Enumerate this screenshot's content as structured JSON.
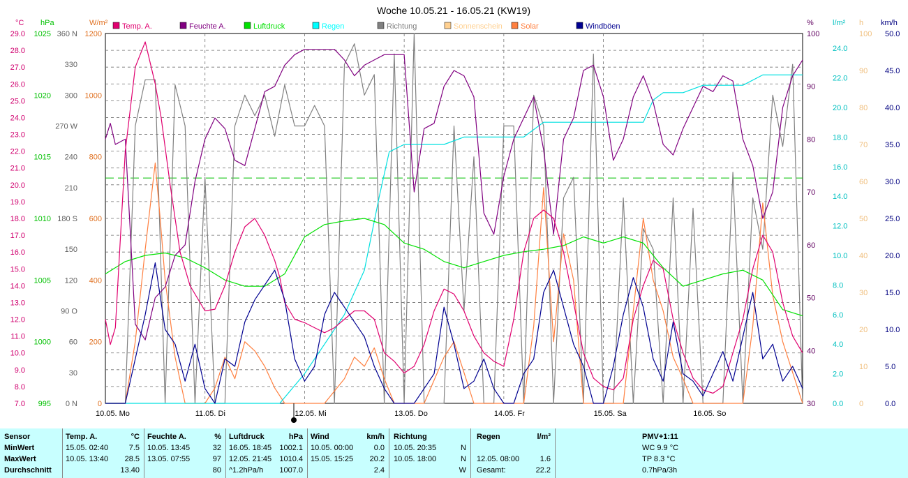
{
  "chart_data": {
    "type": "line",
    "title": "Woche 10.05.21 - 16.05.21 (KW19)",
    "x_labels": [
      "10.05. Mo",
      "11.05. Di",
      "12.05. Mi",
      "13.05. Do",
      "14.05. Fr",
      "15.05. Sa",
      "16.05. So"
    ],
    "axes": {
      "temp": {
        "unit": "°C",
        "min": 7,
        "max": 29,
        "ticks": [
          "7.0",
          "8.0",
          "9.0",
          "10.0",
          "11.0",
          "12.0",
          "13.0",
          "14.0",
          "15.0",
          "16.0",
          "17.0",
          "18.0",
          "19.0",
          "20.0",
          "21.0",
          "22.0",
          "23.0",
          "24.0",
          "25.0",
          "26.0",
          "27.0",
          "28.0",
          "29.0"
        ],
        "color": "#d0006f"
      },
      "pressure": {
        "unit": "hPa",
        "min": 995,
        "max": 1025,
        "ticks": [
          "995",
          "1000",
          "1005",
          "1010",
          "1015",
          "1020",
          "1025"
        ],
        "color": "#00c000"
      },
      "direction": {
        "ticks": [
          "0 N",
          "30",
          "60",
          "90 O",
          "120",
          "150",
          "180 S",
          "210",
          "240",
          "270 W",
          "300",
          "330",
          "360 N"
        ],
        "color": "#606060"
      },
      "solar": {
        "unit": "W/m²",
        "min": 0,
        "max": 1200,
        "ticks": [
          "0",
          "200",
          "400",
          "600",
          "800",
          "1000",
          "1200"
        ],
        "color": "#e07020"
      },
      "humidity": {
        "unit": "%",
        "min": 30,
        "max": 100,
        "ticks": [
          "30",
          "40",
          "50",
          "60",
          "70",
          "80",
          "90",
          "100"
        ],
        "color": "#600060"
      },
      "rain": {
        "unit": "l/m²",
        "min": 0,
        "max": 25,
        "ticks": [
          "0.0",
          "2.0",
          "4.0",
          "6.0",
          "8.0",
          "10.0",
          "12.0",
          "14.0",
          "16.0",
          "18.0",
          "20.0",
          "22.0",
          "24.0"
        ],
        "color": "#00c0c0"
      },
      "sunshine": {
        "unit": "h",
        "min": 0,
        "max": 100,
        "ticks": [
          "0",
          "10",
          "20",
          "30",
          "40",
          "50",
          "60",
          "70",
          "80",
          "90",
          "100"
        ],
        "color": "#f0c080"
      },
      "wind": {
        "unit": "km/h",
        "min": 0,
        "max": 50,
        "ticks": [
          "0.0",
          "5.0",
          "10.0",
          "15.0",
          "20.0",
          "25.0",
          "30.0",
          "35.0",
          "40.0",
          "45.0",
          "50.0"
        ],
        "color": "#000080"
      }
    },
    "reference_line": {
      "axis": "temp",
      "value": 20.4,
      "color": "#00c000"
    },
    "legend": [
      {
        "name": "Temp. A.",
        "color": "#e0006f"
      },
      {
        "name": "Feuchte A.",
        "color": "#800080"
      },
      {
        "name": "Luftdruck",
        "color": "#00e000"
      },
      {
        "name": "Regen",
        "color": "#00ffff"
      },
      {
        "name": "Richtung",
        "color": "#808080"
      },
      {
        "name": "Sonnenschein",
        "color": "#ffd090"
      },
      {
        "name": "Solar",
        "color": "#ff8040"
      },
      {
        "name": "Windböen",
        "color": "#000090"
      }
    ],
    "series": [
      {
        "name": "Temp. A.",
        "axis": "temp",
        "color": "#e0006f",
        "x": [
          0,
          0.05,
          0.1,
          0.2,
          0.3,
          0.4,
          0.5,
          0.56,
          0.65,
          0.75,
          0.85,
          0.95,
          1.0,
          1.1,
          1.2,
          1.3,
          1.4,
          1.5,
          1.6,
          1.7,
          1.75,
          1.8,
          1.9,
          2.0,
          2.1,
          2.2,
          2.3,
          2.4,
          2.5,
          2.6,
          2.7,
          2.8,
          2.9,
          3.0,
          3.1,
          3.2,
          3.3,
          3.4,
          3.5,
          3.6,
          3.7,
          3.8,
          3.9,
          4.0,
          4.1,
          4.2,
          4.3,
          4.4,
          4.5,
          4.6,
          4.7,
          4.8,
          4.9,
          5.0,
          5.1,
          5.2,
          5.3,
          5.4,
          5.5,
          5.6,
          5.7,
          5.8,
          5.9,
          6.0,
          6.1,
          6.2,
          6.3,
          6.4,
          6.5,
          6.6,
          6.7,
          6.8,
          6.9,
          7.0
        ],
        "y": [
          12,
          10.5,
          11.5,
          22,
          27,
          28.5,
          26,
          24,
          20,
          16,
          14,
          13,
          12.5,
          12.6,
          14,
          16,
          17.5,
          18,
          17,
          15.5,
          14.5,
          13,
          12,
          11.8,
          11.5,
          11.2,
          11.5,
          12,
          12.5,
          12.5,
          12,
          10,
          9.5,
          8.8,
          9.2,
          10.5,
          12.5,
          13.8,
          13.5,
          12.5,
          11,
          10,
          9.5,
          9.2,
          12,
          16,
          18,
          18.5,
          18,
          16,
          13,
          10,
          8.5,
          8.0,
          7.8,
          8.5,
          12,
          14,
          15.5,
          15,
          12,
          10,
          8.5,
          7.8,
          7.6,
          8,
          10,
          12,
          15,
          17,
          16,
          13,
          11,
          10
        ]
      },
      {
        "name": "Feuchte A.",
        "axis": "humidity",
        "color": "#800080",
        "x": [
          0,
          0.05,
          0.1,
          0.2,
          0.3,
          0.4,
          0.5,
          0.6,
          0.7,
          0.8,
          0.9,
          1.0,
          1.1,
          1.2,
          1.3,
          1.4,
          1.5,
          1.6,
          1.7,
          1.8,
          1.9,
          2.0,
          2.1,
          2.2,
          2.3,
          2.4,
          2.5,
          2.6,
          2.7,
          2.8,
          2.9,
          3.0,
          3.1,
          3.2,
          3.3,
          3.4,
          3.5,
          3.6,
          3.7,
          3.8,
          3.9,
          4.0,
          4.1,
          4.2,
          4.3,
          4.4,
          4.5,
          4.6,
          4.7,
          4.8,
          4.9,
          5.0,
          5.1,
          5.2,
          5.3,
          5.4,
          5.5,
          5.6,
          5.7,
          5.8,
          5.9,
          6.0,
          6.1,
          6.2,
          6.3,
          6.4,
          6.5,
          6.6,
          6.7,
          6.8,
          6.9,
          7.0
        ],
        "y": [
          80,
          83,
          79,
          80,
          45,
          42,
          50,
          52,
          58,
          60,
          72,
          80,
          84,
          82,
          76,
          75,
          82,
          89,
          90,
          94,
          96,
          97,
          97,
          97,
          97,
          95,
          92,
          94,
          95,
          96,
          96,
          96,
          70,
          82,
          83,
          90,
          93,
          92,
          88,
          66,
          62,
          73,
          80,
          84,
          88,
          78,
          62,
          80,
          84,
          93,
          94,
          88,
          76,
          80,
          88,
          92,
          87,
          79,
          77,
          82,
          86,
          90,
          89,
          92,
          91,
          80,
          75,
          65,
          70,
          86,
          92,
          95
        ]
      },
      {
        "name": "Luftdruck",
        "axis": "pressure",
        "color": "#00e000",
        "x": [
          0,
          0.2,
          0.4,
          0.6,
          0.8,
          1.0,
          1.2,
          1.4,
          1.6,
          1.8,
          2.0,
          2.2,
          2.4,
          2.6,
          2.8,
          3.0,
          3.2,
          3.4,
          3.6,
          3.8,
          4.0,
          4.2,
          4.4,
          4.6,
          4.8,
          5.0,
          5.2,
          5.4,
          5.6,
          5.8,
          6.0,
          6.2,
          6.4,
          6.6,
          6.8,
          7.0
        ],
        "y": [
          1005.5,
          1006.5,
          1007,
          1007.2,
          1006.8,
          1006,
          1005,
          1004.5,
          1004.5,
          1005.5,
          1008.5,
          1009.5,
          1009.8,
          1010,
          1009.5,
          1008,
          1007.5,
          1006.5,
          1006,
          1006.5,
          1007,
          1007.3,
          1007.5,
          1007.8,
          1008.5,
          1008,
          1008.5,
          1008,
          1006,
          1004.5,
          1005,
          1005.5,
          1005.8,
          1005,
          1002.6,
          1002.1
        ]
      },
      {
        "name": "Regen",
        "axis": "rain",
        "color": "#00e0e0",
        "x": [
          0,
          1.75,
          2.0,
          2.2,
          2.4,
          2.6,
          2.75,
          2.85,
          3.0,
          3.2,
          3.4,
          3.6,
          3.8,
          4.0,
          4.2,
          4.4,
          4.6,
          4.8,
          5.0,
          5.2,
          5.4,
          5.5,
          5.6,
          5.8,
          6.0,
          6.2,
          6.4,
          6.6,
          6.7,
          6.8,
          7.0
        ],
        "y": [
          0,
          0,
          2.0,
          4,
          6,
          9,
          14,
          17,
          17.5,
          17.5,
          17.5,
          18,
          18,
          18,
          18,
          19,
          19,
          19,
          19,
          19,
          19,
          20.5,
          21,
          21,
          21.5,
          21.5,
          21.5,
          22.2,
          22.2,
          22.2,
          22.2
        ]
      },
      {
        "name": "Richtung",
        "axis": "direction",
        "color": "#808080",
        "x": [
          0,
          0.2,
          0.3,
          0.4,
          0.5,
          0.6,
          0.7,
          0.8,
          0.9,
          1.0,
          1.1,
          1.2,
          1.3,
          1.4,
          1.5,
          1.6,
          1.7,
          1.8,
          1.9,
          2.0,
          2.1,
          2.2,
          2.3,
          2.4,
          2.5,
          2.6,
          2.7,
          2.8,
          2.9,
          3.0,
          3.1,
          3.2,
          3.3,
          3.4,
          3.5,
          3.6,
          3.7,
          3.8,
          3.9,
          4.0,
          4.1,
          4.2,
          4.3,
          4.4,
          4.5,
          4.6,
          4.7,
          4.8,
          4.9,
          5.0,
          5.1,
          5.2,
          5.3,
          5.4,
          5.5,
          5.6,
          5.7,
          5.8,
          5.9,
          6.0,
          6.1,
          6.2,
          6.3,
          6.4,
          6.5,
          6.6,
          6.7,
          6.8,
          6.9,
          7.0
        ],
        "y": [
          0,
          0,
          270,
          315,
          315,
          0,
          310,
          270,
          0,
          220,
          0,
          0,
          270,
          300,
          280,
          300,
          260,
          310,
          270,
          270,
          290,
          270,
          0,
          330,
          350,
          300,
          320,
          0,
          340,
          0,
          360,
          0,
          0,
          0,
          270,
          90,
          240,
          0,
          0,
          270,
          270,
          0,
          300,
          270,
          0,
          200,
          220,
          0,
          340,
          0,
          0,
          200,
          0,
          170,
          150,
          0,
          200,
          0,
          190,
          0,
          0,
          0,
          225,
          0,
          200,
          150,
          300,
          250,
          330,
          0
        ]
      },
      {
        "name": "Solar",
        "axis": "solar",
        "color": "#ff8040",
        "x": [
          0,
          0.2,
          0.3,
          0.4,
          0.5,
          0.55,
          0.6,
          0.7,
          0.8,
          0.9,
          1.0,
          1.1,
          1.2,
          1.3,
          1.4,
          1.5,
          1.6,
          1.7,
          1.8,
          1.9,
          2.0,
          2.2,
          2.4,
          2.5,
          2.6,
          2.7,
          2.8,
          2.9,
          3.0,
          3.2,
          3.4,
          3.5,
          3.6,
          3.7,
          3.8,
          3.9,
          4.0,
          4.2,
          4.3,
          4.4,
          4.5,
          4.6,
          4.7,
          4.8,
          4.9,
          5.0,
          5.2,
          5.3,
          5.4,
          5.5,
          5.6,
          5.7,
          5.8,
          5.9,
          6.0,
          6.2,
          6.4,
          6.5,
          6.6,
          6.7,
          6.8,
          6.9,
          7.0
        ],
        "y": [
          0,
          0,
          200,
          500,
          780,
          600,
          400,
          150,
          0,
          0,
          0,
          50,
          150,
          80,
          200,
          170,
          120,
          50,
          0,
          0,
          0,
          0,
          80,
          150,
          120,
          180,
          80,
          0,
          0,
          0,
          150,
          200,
          100,
          0,
          0,
          0,
          0,
          0,
          250,
          700,
          200,
          550,
          400,
          0,
          0,
          0,
          0,
          300,
          600,
          400,
          300,
          150,
          80,
          0,
          0,
          0,
          0,
          250,
          650,
          350,
          200,
          100,
          0
        ]
      },
      {
        "name": "Windböen",
        "axis": "wind",
        "color": "#000090",
        "x": [
          0,
          0.2,
          0.3,
          0.4,
          0.5,
          0.6,
          0.7,
          0.8,
          0.9,
          1.0,
          1.1,
          1.2,
          1.3,
          1.4,
          1.5,
          1.6,
          1.7,
          1.8,
          1.9,
          2.0,
          2.1,
          2.2,
          2.3,
          2.4,
          2.5,
          2.6,
          2.7,
          2.8,
          2.9,
          3.0,
          3.1,
          3.2,
          3.3,
          3.4,
          3.5,
          3.6,
          3.7,
          3.8,
          3.9,
          4.0,
          4.1,
          4.2,
          4.3,
          4.4,
          4.5,
          4.6,
          4.7,
          4.8,
          4.9,
          5.0,
          5.1,
          5.2,
          5.3,
          5.4,
          5.5,
          5.6,
          5.7,
          5.8,
          5.9,
          6.0,
          6.1,
          6.2,
          6.3,
          6.4,
          6.5,
          6.6,
          6.7,
          6.8,
          6.9,
          7.0
        ],
        "y": [
          0,
          0,
          6,
          12,
          19,
          10,
          8,
          3,
          8,
          2,
          0,
          6,
          5,
          11,
          14,
          16,
          18,
          14,
          6,
          3,
          5,
          12,
          15,
          13,
          11,
          9,
          5,
          2,
          0,
          0,
          0,
          2,
          4,
          13,
          8,
          2,
          3,
          6,
          2,
          0,
          0,
          4,
          6,
          15,
          18,
          13,
          8,
          5,
          0,
          0,
          5,
          12,
          17,
          13,
          6,
          3,
          11,
          4,
          3,
          1,
          4,
          7,
          3,
          9,
          15,
          6,
          8,
          3,
          5,
          2
        ]
      }
    ]
  },
  "stats": {
    "headers": {
      "sensor": "Sensor",
      "temp": "Temp. A.",
      "temp_unit": "°C",
      "hum": "Feuchte A.",
      "hum_unit": "%",
      "press": "Luftdruck",
      "press_unit": "hPa",
      "wind": "Wind",
      "wind_unit": "km/h",
      "dir": "Richtung",
      "rain": "Regen",
      "rain_unit": "l/m²",
      "pmv": "PMV+1:11"
    },
    "row_labels": [
      "MinWert",
      "MaxWert",
      "Durchschnitt"
    ],
    "temp": [
      [
        "15.05.  02:40",
        "7.5"
      ],
      [
        "10.05.  13:40",
        "28.5"
      ],
      [
        "",
        "13.40"
      ]
    ],
    "hum": [
      [
        "10.05.  13:45",
        "32"
      ],
      [
        "13.05.  07:55",
        "97"
      ],
      [
        "",
        "80"
      ]
    ],
    "press": [
      [
        "16.05.  18:45",
        "1002.1"
      ],
      [
        "12.05.  21:45",
        "1010.4"
      ],
      [
        "^1.2hPa/h",
        "1007.0"
      ]
    ],
    "wind": [
      [
        "10.05.  00:00",
        "0.0"
      ],
      [
        "15.05.  15:25",
        "20.2"
      ],
      [
        "",
        "2.4"
      ]
    ],
    "dir": [
      [
        "10.05.  20:35",
        "N"
      ],
      [
        "10.05.  18:00",
        "N"
      ],
      [
        "",
        "W"
      ]
    ],
    "rain": [
      [
        "",
        ""
      ],
      [
        "12.05.  08:00",
        "1.6"
      ],
      [
        "Gesamt:",
        "22.2"
      ]
    ],
    "pmv": [
      "WC 9.9 °C",
      "TP 8.3 °C",
      "0.7hPa/3h"
    ]
  }
}
